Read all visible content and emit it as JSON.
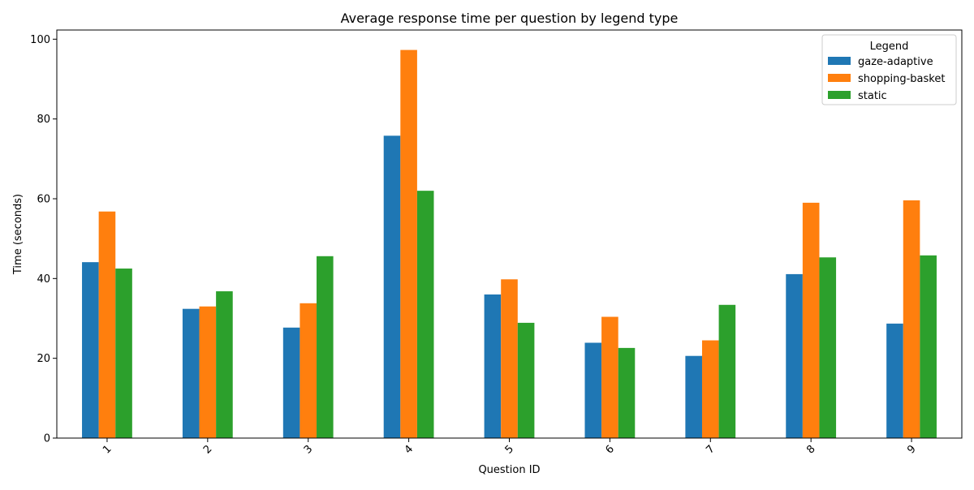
{
  "chart_data": {
    "type": "bar",
    "title": "Average response time per question by legend type",
    "xlabel": "Question ID",
    "ylabel": "Time (seconds)",
    "categories": [
      "1",
      "2",
      "3",
      "4",
      "5",
      "6",
      "7",
      "8",
      "9"
    ],
    "ylim": [
      0,
      102.3
    ],
    "yticks": [
      0,
      20,
      40,
      60,
      80,
      100
    ],
    "grid": false,
    "legend": {
      "title": "Legend",
      "placement": "top-right"
    },
    "series": [
      {
        "name": "gaze-adaptive",
        "color": "#1f77b4",
        "values": [
          44.1,
          32.4,
          27.7,
          75.8,
          36.0,
          23.9,
          20.6,
          41.1,
          28.7
        ]
      },
      {
        "name": "shopping-basket",
        "color": "#ff7f0e",
        "values": [
          56.8,
          33.0,
          33.8,
          97.3,
          39.8,
          30.4,
          24.5,
          59.0,
          59.6
        ]
      },
      {
        "name": "static",
        "color": "#2ca02c",
        "values": [
          42.5,
          36.8,
          45.6,
          62.0,
          28.9,
          22.6,
          33.4,
          45.3,
          45.8
        ]
      }
    ]
  }
}
